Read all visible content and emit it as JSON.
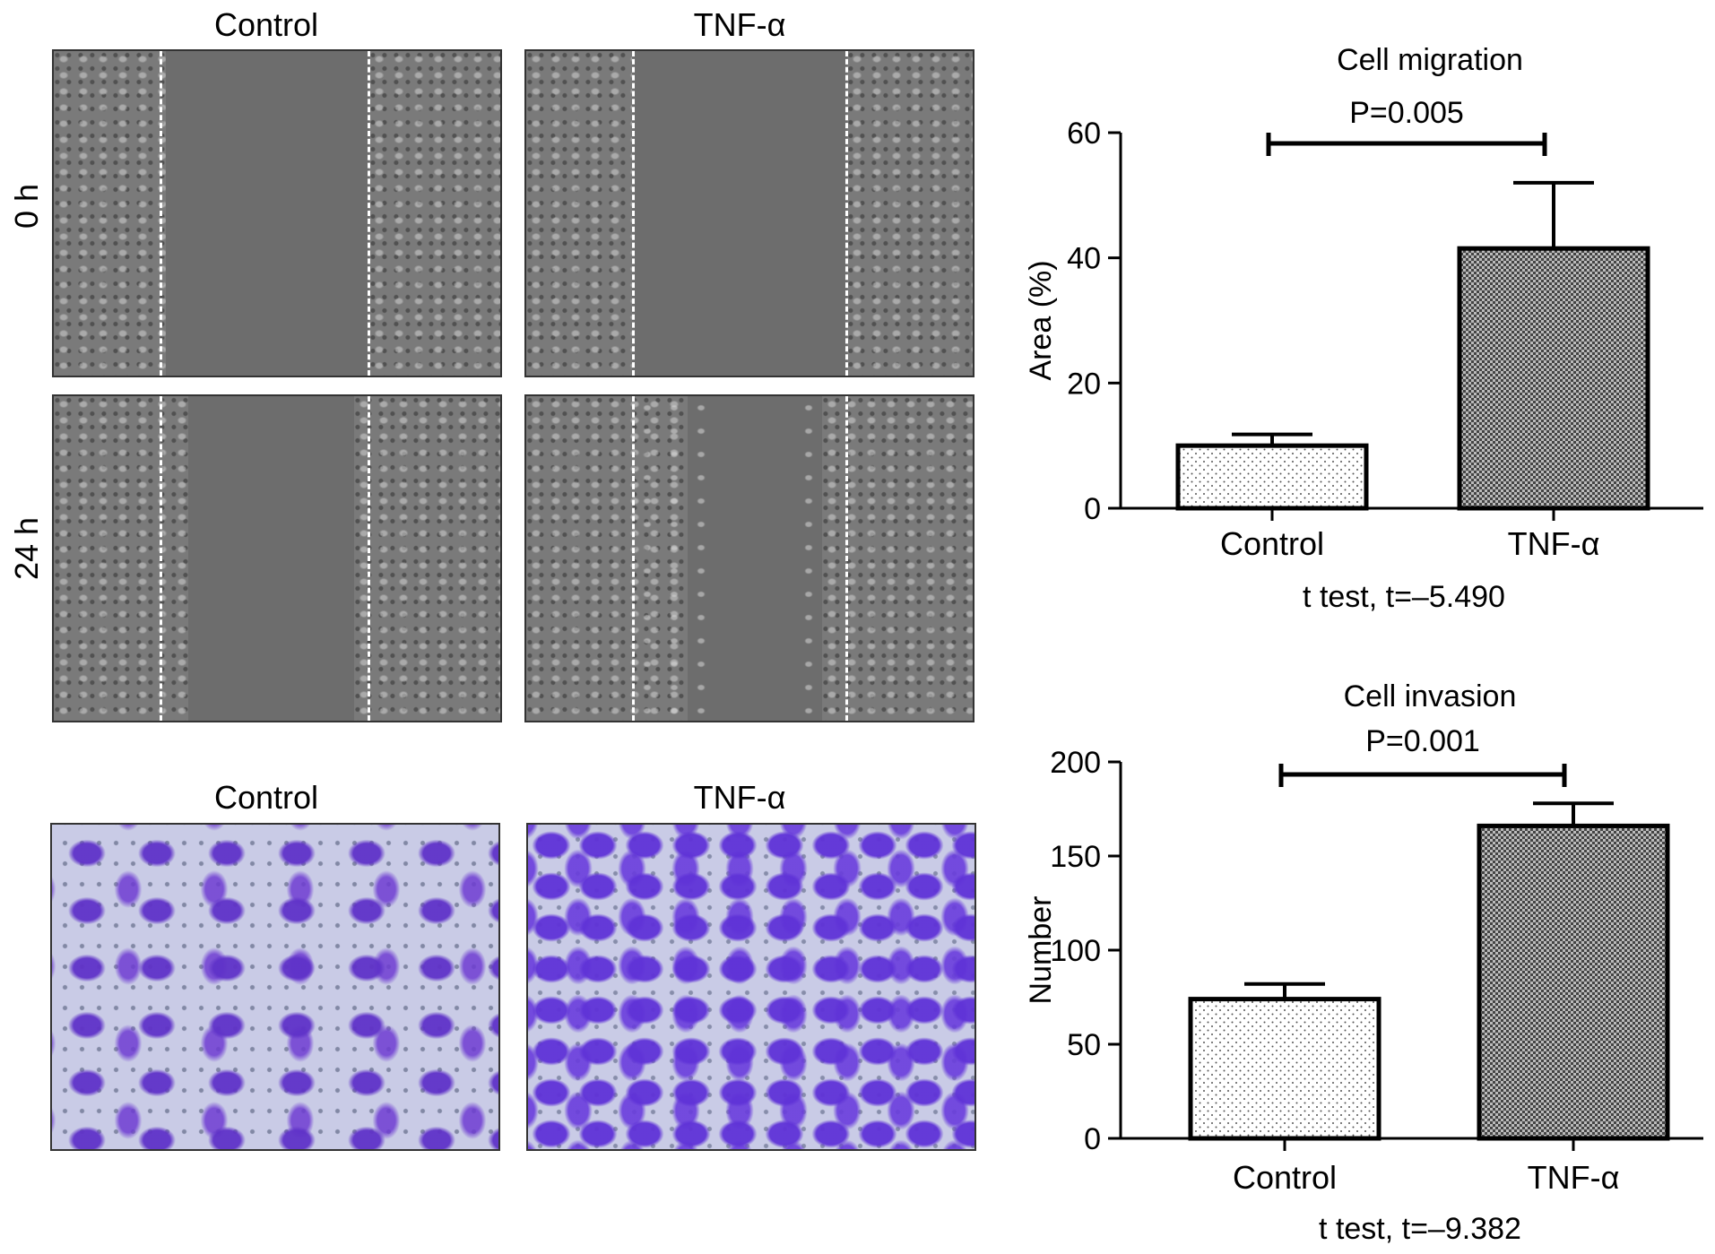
{
  "micrographs": {
    "wound_header_control": "Control",
    "wound_header_tnf": "TNF-α",
    "row_0h": "0 h",
    "row_24h": "24 h",
    "transwell_header_control": "Control",
    "transwell_header_tnf": "TNF-α"
  },
  "colors": {
    "stain_violet": "#6a3fd0",
    "stain_background": "#c9cbe6",
    "phase_gray": "#777777"
  },
  "chart_data": [
    {
      "type": "bar",
      "title": "Cell migration",
      "ylabel": "Area (%)",
      "xlabel": "t test, t=–5.490",
      "categories": [
        "Control",
        "TNF-α"
      ],
      "values": [
        10,
        41.5
      ],
      "errors": [
        1.8,
        10.5
      ],
      "ylim": [
        0,
        60
      ],
      "yticks": [
        0,
        20,
        40,
        60
      ],
      "significance": {
        "label": "P=0.005",
        "between": [
          0,
          1
        ]
      },
      "patterns": [
        "dots",
        "crosshatch"
      ],
      "grid": false
    },
    {
      "type": "bar",
      "title": "Cell invasion",
      "ylabel": "Number",
      "xlabel": "t test, t=–9.382",
      "categories": [
        "Control",
        "TNF-α"
      ],
      "values": [
        74,
        166
      ],
      "errors": [
        8,
        12
      ],
      "ylim": [
        0,
        200
      ],
      "yticks": [
        0,
        50,
        100,
        150,
        200
      ],
      "significance": {
        "label": "P=0.001",
        "between": [
          0,
          1
        ]
      },
      "patterns": [
        "dots",
        "crosshatch"
      ],
      "grid": false
    }
  ]
}
